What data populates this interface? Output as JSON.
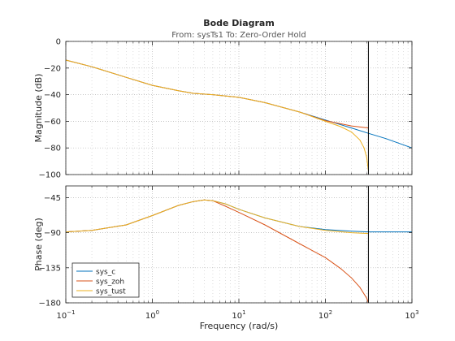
{
  "chart_data": {
    "type": "line",
    "title": "Bode Diagram",
    "subtitle": "From: sysTs1  To: Zero-Order Hold",
    "xlabel": "Frequency  (rad/s)",
    "x_scale": "log",
    "xlim": [
      0.1,
      1000
    ],
    "x_ticks": [
      {
        "value": 0.1,
        "base": "10",
        "exp": "-1"
      },
      {
        "value": 1,
        "base": "10",
        "exp": "0"
      },
      {
        "value": 10,
        "base": "10",
        "exp": "1"
      },
      {
        "value": 100,
        "base": "10",
        "exp": "2"
      },
      {
        "value": 1000,
        "base": "10",
        "exp": "3"
      }
    ],
    "grid": true,
    "legend_position": "bottom-left",
    "legend_panel": "phase",
    "nyquist_line_x": 314,
    "panels": [
      {
        "id": "magnitude",
        "ylabel": "Magnitude (dB)",
        "ylim": [
          -100,
          0
        ],
        "yticks": [
          0,
          -20,
          -40,
          -60,
          -80,
          -100
        ],
        "series": [
          {
            "name": "sys_c",
            "color": "#0072BD",
            "x": [
              0.1,
              0.2,
              0.5,
              1,
              2,
              3,
              5,
              10,
              20,
              50,
              100,
              200,
              314,
              500,
              1000
            ],
            "y": [
              -14,
              -19,
              -27,
              -33,
              -37,
              -39,
              -40,
              -42,
              -46,
              -53,
              -59,
              -65,
              -69,
              -73,
              -80
            ]
          },
          {
            "name": "sys_zoh",
            "color": "#D95319",
            "x": [
              0.1,
              0.2,
              0.5,
              1,
              2,
              3,
              5,
              10,
              20,
              50,
              100,
              200,
              314
            ],
            "y": [
              -14,
              -19,
              -27,
              -33,
              -37,
              -39,
              -40,
              -42,
              -46,
              -53,
              -59.5,
              -63.5,
              -65
            ]
          },
          {
            "name": "sys_tust",
            "color": "#EDB120",
            "x": [
              0.1,
              0.2,
              0.5,
              1,
              2,
              3,
              5,
              10,
              20,
              50,
              100,
              150,
              200,
              250,
              280,
              300,
              314
            ],
            "y": [
              -14,
              -19,
              -27,
              -33,
              -37,
              -39,
              -40,
              -42,
              -46,
              -53,
              -60,
              -64,
              -68,
              -74,
              -80,
              -87,
              -97
            ]
          }
        ]
      },
      {
        "id": "phase",
        "ylabel": "Phase (deg)",
        "ylim": [
          -180,
          -30
        ],
        "yticks": [
          -45,
          -90,
          -135,
          -180
        ],
        "series": [
          {
            "name": "sys_c",
            "color": "#0072BD",
            "x": [
              0.1,
              0.2,
              0.5,
              1,
              2,
              3,
              4,
              5,
              7,
              10,
              20,
              50,
              100,
              200,
              314,
              500,
              1000
            ],
            "y": [
              -89,
              -87,
              -80,
              -68,
              -55,
              -50,
              -48,
              -49,
              -53,
              -60,
              -71,
              -82,
              -86,
              -88,
              -89,
              -89,
              -89
            ]
          },
          {
            "name": "sys_zoh",
            "color": "#D95319",
            "x": [
              0.1,
              0.2,
              0.5,
              1,
              2,
              3,
              4,
              5,
              7,
              10,
              20,
              50,
              100,
              150,
              200,
              250,
              300,
              314
            ],
            "y": [
              -89,
              -87,
              -80,
              -68,
              -55,
              -50,
              -48,
              -49,
              -56,
              -64,
              -80,
              -104,
              -122,
              -136,
              -148,
              -160,
              -174,
              -180
            ]
          },
          {
            "name": "sys_tust",
            "color": "#EDB120",
            "x": [
              0.1,
              0.2,
              0.5,
              1,
              2,
              3,
              4,
              5,
              7,
              10,
              20,
              50,
              100,
              200,
              314
            ],
            "y": [
              -89,
              -87,
              -80,
              -68,
              -55,
              -50,
              -48,
              -49,
              -53,
              -60,
              -71,
              -82,
              -87,
              -90,
              -91
            ]
          }
        ]
      }
    ]
  }
}
